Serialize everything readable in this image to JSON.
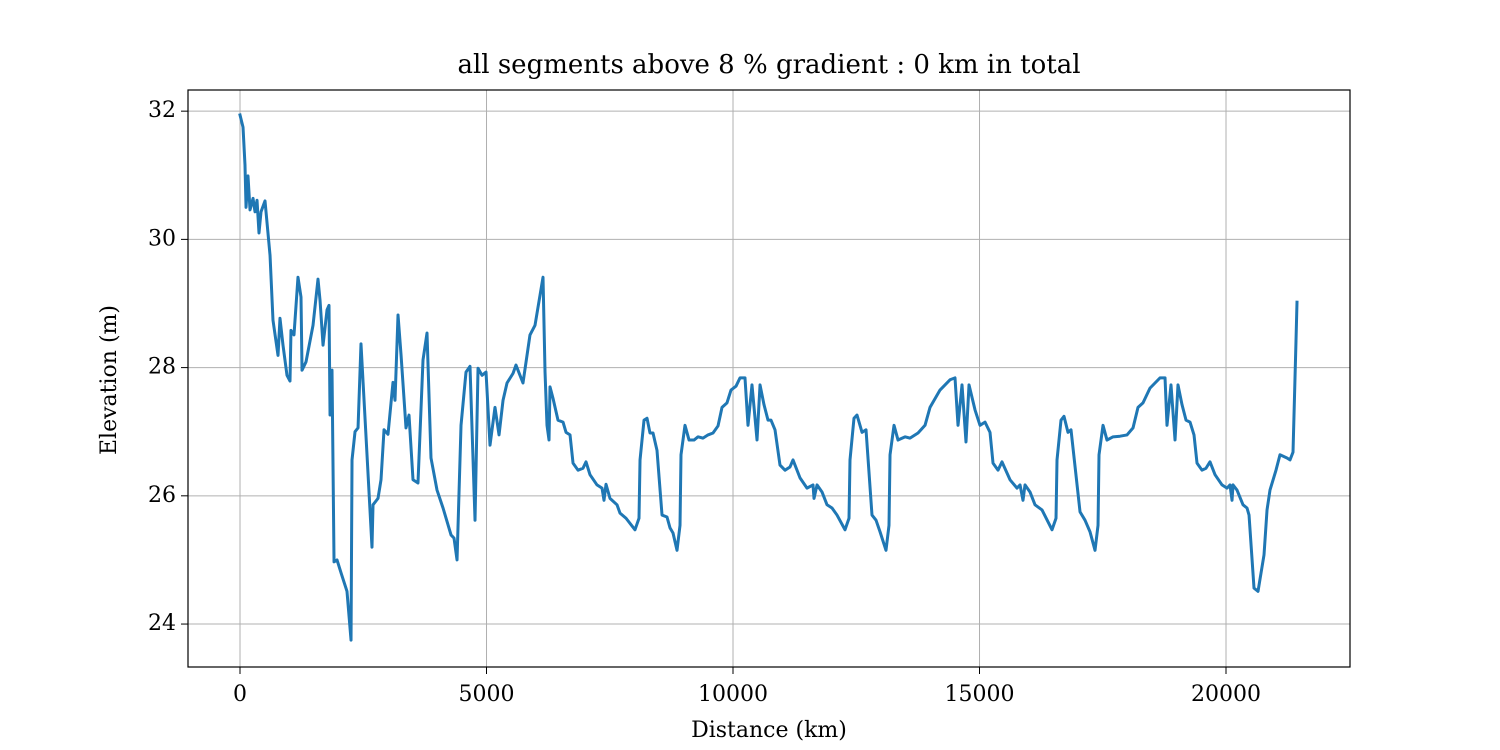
{
  "chart_data": {
    "type": "line",
    "title": "all segments above 8 % gradient : 0 km in total",
    "xlabel": "Distance (km)",
    "ylabel": "Elevation (m)",
    "color": "#1f77b4",
    "grid": true,
    "xlim": [
      -1055,
      22515
    ],
    "ylim": [
      23.33,
      32.33
    ],
    "xticks": [
      0,
      5000,
      10000,
      15000,
      20000
    ],
    "yticks": [
      24,
      26,
      28,
      30,
      32
    ],
    "x": [
      0,
      61,
      101,
      122,
      162,
      203,
      264,
      304,
      345,
      385,
      426,
      507,
      609,
      669,
      771,
      811,
      872,
      953,
      1014,
      1034,
      1095,
      1176,
      1237,
      1258,
      1339,
      1481,
      1582,
      1623,
      1684,
      1765,
      1805,
      1826,
      1866,
      1907,
      1968,
      2049,
      2170,
      2252,
      2272,
      2333,
      2394,
      2454,
      2576,
      2677,
      2698,
      2799,
      2860,
      2921,
      3002,
      3103,
      3144,
      3205,
      3266,
      3367,
      3428,
      3509,
      3610,
      3712,
      3793,
      3874,
      3996,
      4118,
      4280,
      4341,
      4402,
      4483,
      4584,
      4665,
      4767,
      4828,
      4909,
      4990,
      5071,
      5172,
      5254,
      5335,
      5416,
      5538,
      5598,
      5740,
      5882,
      5984,
      6146,
      6187,
      6227,
      6268,
      6288,
      6349,
      6450,
      6552,
      6613,
      6694,
      6755,
      6856,
      6957,
      7018,
      7099,
      7241,
      7343,
      7383,
      7424,
      7505,
      7647,
      7708,
      7830,
      8012,
      8093,
      8114,
      8195,
      8256,
      8316,
      8377,
      8458,
      8560,
      8661,
      8722,
      8783,
      8864,
      8925,
      8945,
      9026,
      9108,
      9209,
      9290,
      9391,
      9493,
      9594,
      9696,
      9777,
      9878,
      9959,
      10061,
      10142,
      10243,
      10304,
      10385,
      10487,
      10548,
      10629,
      10710,
      10771,
      10852,
      10953,
      11055,
      11156,
      11217,
      11359,
      11501,
      11623,
      11643,
      11704,
      11805,
      11907,
      12008,
      12110,
      12272,
      12353,
      12373,
      12454,
      12515,
      12617,
      12698,
      12819,
      12901,
      12982,
      13103,
      13164,
      13185,
      13266,
      13347,
      13489,
      13590,
      13753,
      13895,
      13996,
      14199,
      14402,
      14503,
      14564,
      14645,
      14726,
      14787,
      14909,
      15010,
      15112,
      15213,
      15274,
      15375,
      15456,
      15619,
      15761,
      15822,
      15882,
      15923,
      16024,
      16126,
      16268,
      16471,
      16552,
      16572,
      16653,
      16714,
      16795,
      16856,
      17039,
      17140,
      17241,
      17343,
      17404,
      17424,
      17505,
      17586,
      17708,
      17850,
      17992,
      18114,
      18215,
      18316,
      18458,
      18560,
      18661,
      18763,
      18803,
      18884,
      18966,
      19026,
      19108,
      19189,
      19270,
      19351,
      19412,
      19513,
      19594,
      19675,
      19777,
      19919,
      20020,
      20081,
      20122,
      20142,
      20223,
      20345,
      20426,
      20467,
      20568,
      20649,
      20771,
      20832,
      20892,
      21014,
      21095,
      21237,
      21298,
      21359,
      21420,
      21440
    ],
    "values": [
      31.94,
      31.75,
      31.16,
      30.5,
      30.99,
      30.46,
      30.64,
      30.43,
      30.61,
      30.1,
      30.43,
      30.6,
      29.75,
      28.74,
      28.19,
      28.77,
      28.35,
      27.88,
      27.79,
      28.58,
      28.51,
      29.41,
      29.1,
      27.96,
      28.09,
      28.66,
      29.38,
      29.05,
      28.35,
      28.9,
      28.97,
      27.26,
      27.96,
      24.97,
      25.0,
      24.8,
      24.51,
      23.75,
      26.56,
      27.0,
      27.06,
      28.37,
      26.64,
      25.2,
      25.86,
      25.96,
      26.25,
      27.03,
      26.96,
      27.77,
      27.49,
      28.82,
      28.2,
      27.06,
      27.26,
      26.25,
      26.2,
      28.12,
      28.54,
      26.59,
      26.09,
      25.81,
      25.39,
      25.34,
      25.0,
      27.1,
      27.93,
      28.02,
      25.62,
      27.99,
      27.88,
      27.93,
      26.79,
      27.38,
      26.95,
      27.49,
      27.76,
      27.91,
      28.04,
      27.76,
      28.51,
      28.66,
      29.41,
      27.93,
      27.1,
      26.87,
      27.7,
      27.52,
      27.18,
      27.15,
      26.99,
      26.95,
      26.51,
      26.4,
      26.43,
      26.53,
      26.33,
      26.17,
      26.12,
      25.93,
      26.18,
      25.96,
      25.86,
      25.73,
      25.65,
      25.47,
      25.65,
      26.56,
      27.18,
      27.21,
      26.98,
      26.98,
      26.71,
      25.7,
      25.67,
      25.5,
      25.42,
      25.15,
      25.54,
      26.64,
      27.1,
      26.87,
      26.87,
      26.92,
      26.9,
      26.95,
      26.98,
      27.09,
      27.38,
      27.45,
      27.65,
      27.71,
      27.84,
      27.84,
      27.1,
      27.73,
      26.87,
      27.73,
      27.42,
      27.18,
      27.18,
      27.03,
      26.48,
      26.4,
      26.45,
      26.56,
      26.28,
      26.12,
      26.17,
      25.96,
      26.17,
      26.06,
      25.86,
      25.81,
      25.7,
      25.47,
      25.65,
      26.56,
      27.21,
      27.26,
      26.99,
      27.03,
      25.7,
      25.62,
      25.44,
      25.15,
      25.54,
      26.64,
      27.1,
      26.87,
      26.92,
      26.9,
      26.98,
      27.1,
      27.38,
      27.65,
      27.81,
      27.84,
      27.1,
      27.73,
      26.84,
      27.73,
      27.34,
      27.1,
      27.15,
      26.99,
      26.51,
      26.4,
      26.53,
      26.25,
      26.12,
      26.17,
      25.93,
      26.17,
      26.06,
      25.86,
      25.78,
      25.47,
      25.65,
      26.56,
      27.18,
      27.24,
      26.99,
      27.03,
      25.75,
      25.62,
      25.44,
      25.15,
      25.54,
      26.64,
      27.1,
      26.87,
      26.92,
      26.93,
      26.95,
      27.06,
      27.38,
      27.45,
      27.68,
      27.76,
      27.84,
      27.84,
      27.1,
      27.73,
      26.87,
      27.73,
      27.42,
      27.18,
      27.15,
      26.95,
      26.51,
      26.4,
      26.43,
      26.53,
      26.33,
      26.17,
      26.12,
      26.17,
      25.93,
      26.17,
      26.09,
      25.86,
      25.81,
      25.7,
      24.56,
      24.51,
      25.08,
      25.78,
      26.09,
      26.4,
      26.64,
      26.59,
      26.56,
      26.68,
      28.43,
      29.02
    ]
  }
}
